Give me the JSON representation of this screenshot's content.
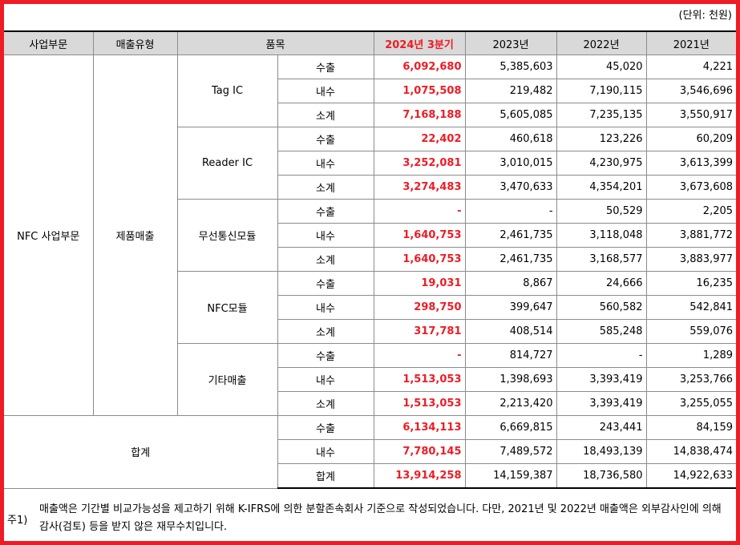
{
  "unit_label": "(단위: 천원)",
  "header": {
    "segment": "사업부문",
    "sales_type": "매출유형",
    "item": "품목",
    "periods": [
      "2024년 3분기",
      "2023년",
      "2022년",
      "2021년"
    ]
  },
  "segment_name": "NFC 사업부문",
  "sales_type_name": "제품매출",
  "groups": [
    {
      "name": "Tag IC",
      "rows": [
        {
          "label": "수출",
          "values": [
            "6,092,680",
            "5,385,603",
            "45,020",
            "4,221"
          ]
        },
        {
          "label": "내수",
          "values": [
            "1,075,508",
            "219,482",
            "7,190,115",
            "3,546,696"
          ]
        },
        {
          "label": "소계",
          "values": [
            "7,168,188",
            "5,605,085",
            "7,235,135",
            "3,550,917"
          ]
        }
      ]
    },
    {
      "name": "Reader IC",
      "rows": [
        {
          "label": "수출",
          "values": [
            "22,402",
            "460,618",
            "123,226",
            "60,209"
          ]
        },
        {
          "label": "내수",
          "values": [
            "3,252,081",
            "3,010,015",
            "4,230,975",
            "3,613,399"
          ]
        },
        {
          "label": "소계",
          "values": [
            "3,274,483",
            "3,470,633",
            "4,354,201",
            "3,673,608"
          ]
        }
      ]
    },
    {
      "name": "무선통신모듈",
      "rows": [
        {
          "label": "수출",
          "values": [
            "-",
            "-",
            "50,529",
            "2,205"
          ]
        },
        {
          "label": "내수",
          "values": [
            "1,640,753",
            "2,461,735",
            "3,118,048",
            "3,881,772"
          ]
        },
        {
          "label": "소계",
          "values": [
            "1,640,753",
            "2,461,735",
            "3,168,577",
            "3,883,977"
          ]
        }
      ]
    },
    {
      "name": "NFC모듈",
      "rows": [
        {
          "label": "수출",
          "values": [
            "19,031",
            "8,867",
            "24,666",
            "16,235"
          ]
        },
        {
          "label": "내수",
          "values": [
            "298,750",
            "399,647",
            "560,582",
            "542,841"
          ]
        },
        {
          "label": "소계",
          "values": [
            "317,781",
            "408,514",
            "585,248",
            "559,076"
          ]
        }
      ]
    },
    {
      "name": "기타매출",
      "rows": [
        {
          "label": "수출",
          "values": [
            "-",
            "814,727",
            "-",
            "1,289"
          ]
        },
        {
          "label": "내수",
          "values": [
            "1,513,053",
            "1,398,693",
            "3,393,419",
            "3,253,766"
          ]
        },
        {
          "label": "소계",
          "values": [
            "1,513,053",
            "2,213,420",
            "3,393,419",
            "3,255,055"
          ]
        }
      ]
    }
  ],
  "total": {
    "name": "합계",
    "rows": [
      {
        "label": "수출",
        "values": [
          "6,134,113",
          "6,669,815",
          "243,441",
          "84,159"
        ]
      },
      {
        "label": "내수",
        "values": [
          "7,780,145",
          "7,489,572",
          "18,493,139",
          "14,838,474"
        ]
      },
      {
        "label": "합계",
        "values": [
          "13,914,258",
          "14,159,387",
          "18,736,580",
          "14,922,633"
        ]
      }
    ]
  },
  "footnote": {
    "label": "주1)",
    "text": "매출액은 기간별 비교가능성을 제고하기 위해 K-IFRS에 의한 분할존속회사 기준으로 작성되었습니다. 다만, 2021년 및 2022년 매출액은 외부감사인에 의해 감사(검토) 등을 받지 않은 재무수치입니다."
  },
  "colors": {
    "border_frame": "#ee1c25",
    "highlight": "#ee1c25",
    "header_bg": "#d9d9d9",
    "grid": "#8c8c8c"
  }
}
